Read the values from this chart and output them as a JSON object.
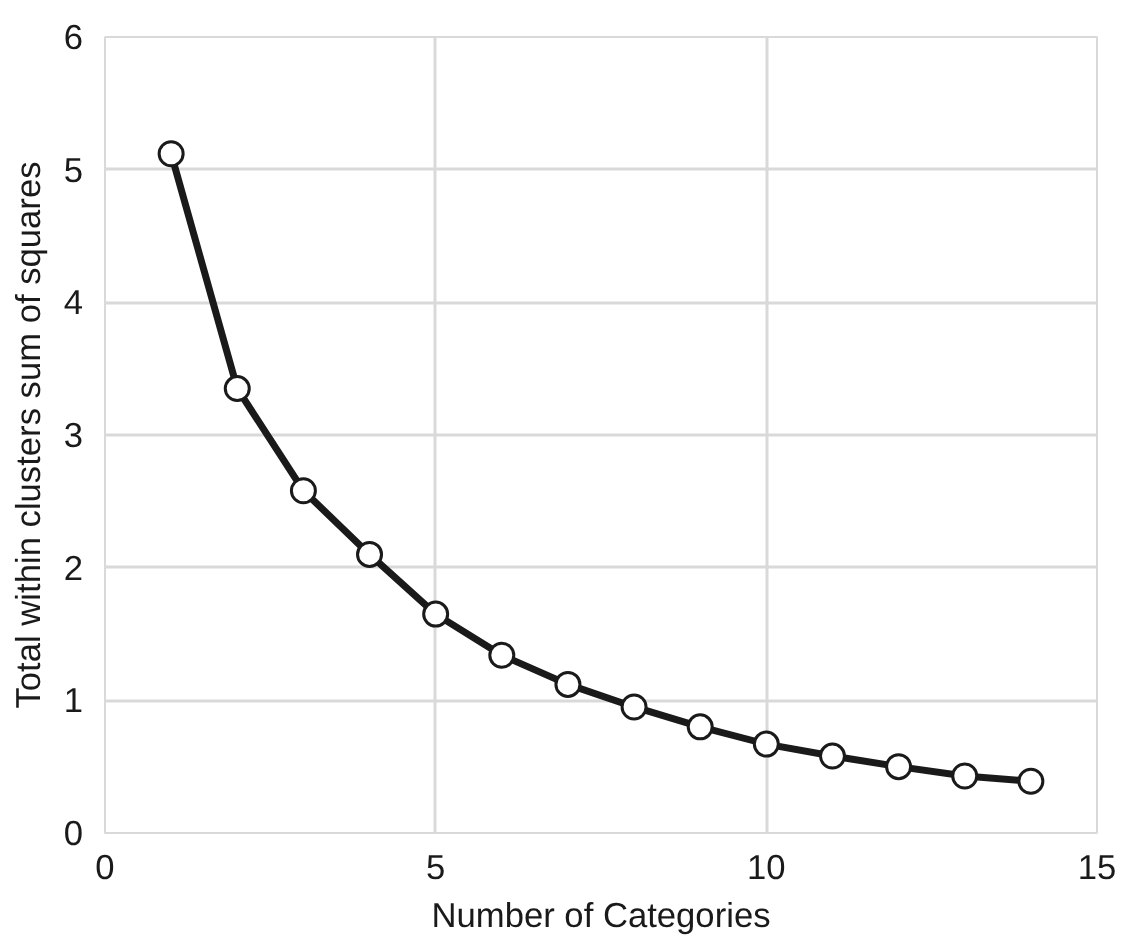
{
  "chart_data": {
    "type": "line",
    "xlabel": "Number of Categories",
    "ylabel": "Total within clusters sum of squares",
    "x": [
      1,
      2,
      3,
      4,
      5,
      6,
      7,
      8,
      9,
      10,
      11,
      12,
      13,
      14
    ],
    "series": [
      {
        "color": "#1a1a1a",
        "values": [
          5.12,
          3.35,
          2.58,
          2.1,
          1.65,
          1.34,
          1.12,
          0.95,
          0.8,
          0.67,
          0.58,
          0.5,
          0.43,
          0.39
        ]
      }
    ],
    "xlim": [
      0,
      15
    ],
    "ylim": [
      0,
      6
    ],
    "xticks": [
      0,
      5,
      10,
      15
    ],
    "yticks": [
      0,
      1,
      2,
      3,
      4,
      5,
      6
    ],
    "grid": true,
    "marker": "circle",
    "line_style": "solid"
  }
}
